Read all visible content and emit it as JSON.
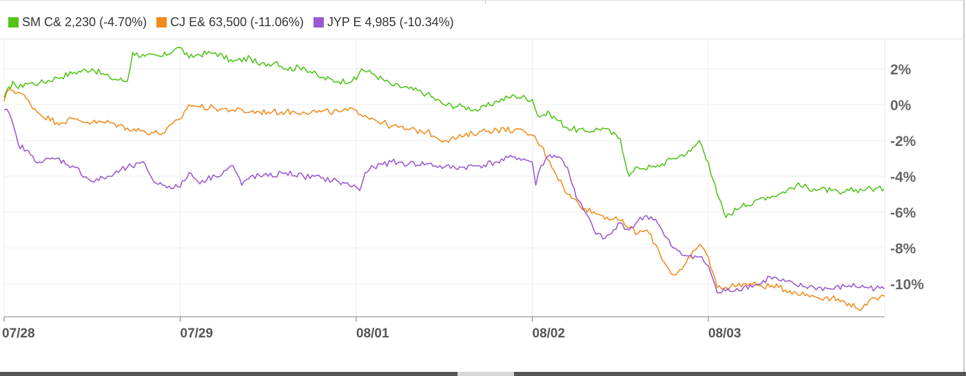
{
  "legend": [
    {
      "label": "SM C& 2,230 (-4.70%)",
      "color": "#52c41a"
    },
    {
      "label": "CJ E& 63,500 (-11.06%)",
      "color": "#f08c1e"
    },
    {
      "label": "JYP E 4,985 (-10.34%)",
      "color": "#9b59d0"
    }
  ],
  "chart_data": {
    "type": "line",
    "title": "",
    "xlabel": "",
    "ylabel": "",
    "x_ticks": [
      "07/28",
      "07/29",
      "08/01",
      "08/02",
      "08/03"
    ],
    "y_ticks": [
      "2%",
      "0%",
      "-2%",
      "-4%",
      "-6%",
      "-8%",
      "-10%"
    ],
    "ylim": [
      -11.8,
      3.6
    ],
    "grid": true,
    "legend_position": "top-left",
    "series": [
      {
        "name": "SM C& 2,230 (-4.70%)",
        "color": "#52c41a",
        "points": [
          [
            0.0,
            0.4
          ],
          [
            0.05,
            1.3
          ],
          [
            0.08,
            0.9
          ],
          [
            0.12,
            1.2
          ],
          [
            0.2,
            1.2
          ],
          [
            0.3,
            1.5
          ],
          [
            0.4,
            1.8
          ],
          [
            0.5,
            2.0
          ],
          [
            0.6,
            1.5
          ],
          [
            0.7,
            1.3
          ],
          [
            0.73,
            2.9
          ],
          [
            0.8,
            2.7
          ],
          [
            0.9,
            2.7
          ],
          [
            0.97,
            3.1
          ],
          [
            1.0,
            3.2
          ],
          [
            1.05,
            2.6
          ],
          [
            1.1,
            2.8
          ],
          [
            1.2,
            2.9
          ],
          [
            1.3,
            2.4
          ],
          [
            1.4,
            2.6
          ],
          [
            1.45,
            2.2
          ],
          [
            1.55,
            2.4
          ],
          [
            1.6,
            2.0
          ],
          [
            1.7,
            2.1
          ],
          [
            1.8,
            1.5
          ],
          [
            1.9,
            1.3
          ],
          [
            2.0,
            1.4
          ],
          [
            2.03,
            2.0
          ],
          [
            2.1,
            1.7
          ],
          [
            2.2,
            1.1
          ],
          [
            2.3,
            0.9
          ],
          [
            2.4,
            0.6
          ],
          [
            2.5,
            0.0
          ],
          [
            2.6,
            -0.1
          ],
          [
            2.7,
            -0.3
          ],
          [
            2.8,
            0.2
          ],
          [
            2.9,
            0.5
          ],
          [
            3.0,
            0.3
          ],
          [
            3.03,
            -0.6
          ],
          [
            3.1,
            -0.5
          ],
          [
            3.2,
            -1.3
          ],
          [
            3.3,
            -1.5
          ],
          [
            3.4,
            -1.3
          ],
          [
            3.5,
            -1.9
          ],
          [
            3.55,
            -4.0
          ],
          [
            3.6,
            -3.5
          ],
          [
            3.7,
            -3.5
          ],
          [
            3.8,
            -3.0
          ],
          [
            3.9,
            -2.6
          ],
          [
            3.95,
            -2.0
          ],
          [
            4.0,
            -3.2
          ],
          [
            4.05,
            -5.0
          ],
          [
            4.1,
            -6.3
          ],
          [
            4.2,
            -5.5
          ],
          [
            4.25,
            -5.6
          ],
          [
            4.3,
            -5.2
          ],
          [
            4.4,
            -5.0
          ],
          [
            4.5,
            -4.5
          ],
          [
            4.6,
            -4.7
          ],
          [
            4.7,
            -4.8
          ],
          [
            4.75,
            -5.0
          ],
          [
            4.8,
            -4.8
          ],
          [
            4.9,
            -4.7
          ],
          [
            5.0,
            -4.7
          ]
        ]
      },
      {
        "name": "CJ E& 63,500 (-11.06%)",
        "color": "#f08c1e",
        "points": [
          [
            0.0,
            0.2
          ],
          [
            0.03,
            0.9
          ],
          [
            0.1,
            0.6
          ],
          [
            0.2,
            -0.5
          ],
          [
            0.3,
            -1.0
          ],
          [
            0.4,
            -0.8
          ],
          [
            0.5,
            -1.0
          ],
          [
            0.6,
            -1.0
          ],
          [
            0.7,
            -1.3
          ],
          [
            0.8,
            -1.5
          ],
          [
            0.9,
            -1.6
          ],
          [
            1.0,
            -0.8
          ],
          [
            1.05,
            0.0
          ],
          [
            1.1,
            -0.1
          ],
          [
            1.2,
            -0.2
          ],
          [
            1.3,
            -0.3
          ],
          [
            1.4,
            -0.4
          ],
          [
            1.5,
            -0.4
          ],
          [
            1.6,
            -0.4
          ],
          [
            1.7,
            -0.4
          ],
          [
            1.8,
            -0.4
          ],
          [
            1.9,
            -0.4
          ],
          [
            2.0,
            -0.3
          ],
          [
            2.05,
            -0.6
          ],
          [
            2.1,
            -0.8
          ],
          [
            2.2,
            -1.2
          ],
          [
            2.3,
            -1.4
          ],
          [
            2.4,
            -1.5
          ],
          [
            2.5,
            -2.0
          ],
          [
            2.6,
            -1.8
          ],
          [
            2.7,
            -1.5
          ],
          [
            2.8,
            -1.4
          ],
          [
            2.9,
            -1.4
          ],
          [
            3.0,
            -1.7
          ],
          [
            3.05,
            -2.3
          ],
          [
            3.1,
            -3.2
          ],
          [
            3.2,
            -5.0
          ],
          [
            3.3,
            -5.8
          ],
          [
            3.4,
            -6.2
          ],
          [
            3.5,
            -6.5
          ],
          [
            3.6,
            -7.2
          ],
          [
            3.65,
            -7.0
          ],
          [
            3.7,
            -7.8
          ],
          [
            3.75,
            -8.8
          ],
          [
            3.8,
            -9.5
          ],
          [
            3.85,
            -9.2
          ],
          [
            3.9,
            -8.5
          ],
          [
            3.95,
            -7.8
          ],
          [
            4.0,
            -8.5
          ],
          [
            4.05,
            -10.2
          ],
          [
            4.1,
            -10.2
          ],
          [
            4.2,
            -10.0
          ],
          [
            4.3,
            -10.1
          ],
          [
            4.4,
            -10.2
          ],
          [
            4.5,
            -10.5
          ],
          [
            4.6,
            -10.7
          ],
          [
            4.7,
            -10.8
          ],
          [
            4.8,
            -11.1
          ],
          [
            4.85,
            -11.4
          ],
          [
            4.9,
            -11.2
          ],
          [
            4.95,
            -10.8
          ],
          [
            5.0,
            -10.7
          ]
        ]
      },
      {
        "name": "JYP E 4,985 (-10.34%)",
        "color": "#9b59d0",
        "points": [
          [
            0.0,
            -0.3
          ],
          [
            0.03,
            -0.5
          ],
          [
            0.08,
            -2.2
          ],
          [
            0.15,
            -2.8
          ],
          [
            0.2,
            -3.2
          ],
          [
            0.3,
            -3.0
          ],
          [
            0.4,
            -3.5
          ],
          [
            0.5,
            -4.3
          ],
          [
            0.6,
            -4.0
          ],
          [
            0.7,
            -3.5
          ],
          [
            0.8,
            -3.3
          ],
          [
            0.85,
            -4.3
          ],
          [
            0.9,
            -4.5
          ],
          [
            1.0,
            -4.6
          ],
          [
            1.05,
            -3.8
          ],
          [
            1.1,
            -4.3
          ],
          [
            1.2,
            -4.0
          ],
          [
            1.3,
            -3.4
          ],
          [
            1.35,
            -4.5
          ],
          [
            1.4,
            -4.0
          ],
          [
            1.5,
            -4.0
          ],
          [
            1.6,
            -3.8
          ],
          [
            1.7,
            -4.0
          ],
          [
            1.8,
            -4.1
          ],
          [
            1.9,
            -4.3
          ],
          [
            2.0,
            -4.6
          ],
          [
            2.02,
            -4.8
          ],
          [
            2.05,
            -3.8
          ],
          [
            2.1,
            -3.5
          ],
          [
            2.2,
            -3.2
          ],
          [
            2.3,
            -3.3
          ],
          [
            2.4,
            -3.3
          ],
          [
            2.5,
            -3.5
          ],
          [
            2.6,
            -3.5
          ],
          [
            2.7,
            -3.4
          ],
          [
            2.8,
            -3.2
          ],
          [
            2.9,
            -2.9
          ],
          [
            3.0,
            -3.2
          ],
          [
            3.02,
            -4.5
          ],
          [
            3.05,
            -3.4
          ],
          [
            3.1,
            -2.8
          ],
          [
            3.15,
            -2.9
          ],
          [
            3.2,
            -3.5
          ],
          [
            3.25,
            -5.2
          ],
          [
            3.3,
            -6.0
          ],
          [
            3.35,
            -7.0
          ],
          [
            3.4,
            -7.5
          ],
          [
            3.45,
            -7.2
          ],
          [
            3.5,
            -6.6
          ],
          [
            3.55,
            -7.0
          ],
          [
            3.6,
            -6.5
          ],
          [
            3.65,
            -6.2
          ],
          [
            3.7,
            -6.4
          ],
          [
            3.75,
            -7.3
          ],
          [
            3.8,
            -8.0
          ],
          [
            3.85,
            -8.4
          ],
          [
            3.9,
            -8.4
          ],
          [
            3.95,
            -8.5
          ],
          [
            4.0,
            -9.0
          ],
          [
            4.05,
            -10.5
          ],
          [
            4.1,
            -10.4
          ],
          [
            4.2,
            -10.2
          ],
          [
            4.3,
            -10.0
          ],
          [
            4.35,
            -9.6
          ],
          [
            4.4,
            -9.8
          ],
          [
            4.5,
            -10.1
          ],
          [
            4.6,
            -10.2
          ],
          [
            4.7,
            -10.3
          ],
          [
            4.8,
            -10.1
          ],
          [
            4.9,
            -10.2
          ],
          [
            5.0,
            -10.3
          ]
        ]
      }
    ]
  }
}
